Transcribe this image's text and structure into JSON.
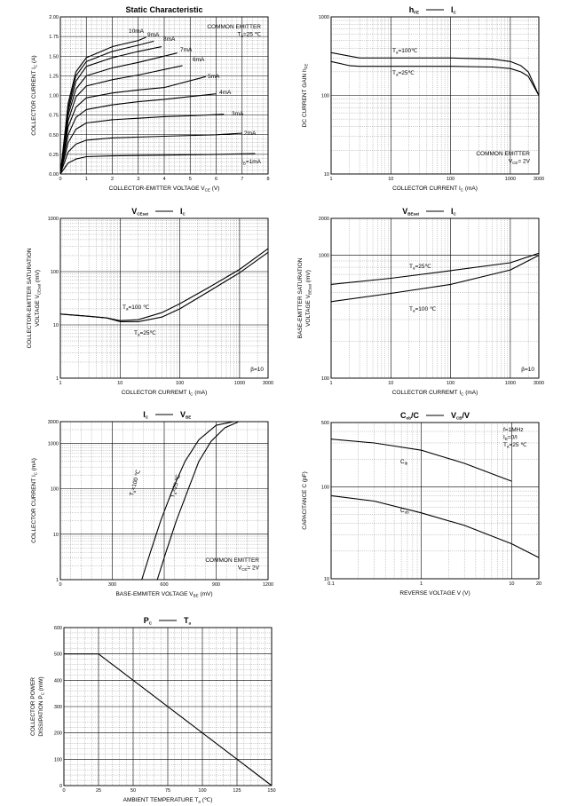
{
  "chart_data": [
    {
      "id": "c1",
      "type": "line",
      "title": "Static Characteristic",
      "xlabel": "COLLECTOR-EMITTER VOLTAGE",
      "xsym": "V",
      "xsub": "CE",
      "xunit": "(V)",
      "ylabel": "COLLECTOR CURRENT",
      "ysym": "I",
      "ysub": "C",
      "yunit": "(A)",
      "xscale": "linear",
      "yscale": "linear",
      "xlim": [
        0,
        8
      ],
      "ylim": [
        0,
        2.0
      ],
      "xticks": [
        0,
        1,
        2,
        3,
        4,
        5,
        6,
        7,
        8
      ],
      "yticks": [
        0,
        0.25,
        0.5,
        0.75,
        1.0,
        1.25,
        1.5,
        1.75,
        2.0
      ],
      "yticklabels": [
        "0.00",
        "0.25",
        "0.50",
        "0.75",
        "1.00",
        "1.25",
        "1.50",
        "1.75",
        "2.00"
      ],
      "notes": [
        "COMMON EMITTER",
        "T_a=25 ℃"
      ],
      "series": [
        {
          "label": "10mA",
          "x": [
            0,
            0.3,
            0.6,
            1,
            2,
            3,
            3.3
          ],
          "y": [
            0,
            0.9,
            1.3,
            1.48,
            1.62,
            1.7,
            1.74
          ]
        },
        {
          "label": "9mA",
          "x": [
            0,
            0.3,
            0.6,
            1,
            2,
            3,
            3.6
          ],
          "y": [
            0,
            0.85,
            1.25,
            1.43,
            1.56,
            1.64,
            1.69
          ]
        },
        {
          "label": "8mA",
          "x": [
            0,
            0.3,
            0.6,
            1,
            2,
            3,
            3.9
          ],
          "y": [
            0,
            0.8,
            1.18,
            1.37,
            1.48,
            1.56,
            1.62
          ]
        },
        {
          "label": "7mA",
          "x": [
            0,
            0.3,
            0.6,
            1,
            2,
            3,
            4.5
          ],
          "y": [
            0,
            0.75,
            1.08,
            1.25,
            1.35,
            1.42,
            1.54
          ]
        },
        {
          "label": "6mA",
          "x": [
            0,
            0.3,
            0.6,
            1,
            2,
            3,
            4.7
          ],
          "y": [
            0,
            0.68,
            0.98,
            1.12,
            1.2,
            1.26,
            1.38
          ]
        },
        {
          "label": "5mA",
          "x": [
            0,
            0.3,
            0.6,
            1,
            2,
            3,
            4,
            5.6
          ],
          "y": [
            0,
            0.6,
            0.85,
            0.97,
            1.03,
            1.07,
            1.1,
            1.24
          ]
        },
        {
          "label": "4mA",
          "x": [
            0,
            0.3,
            0.6,
            1,
            2,
            3,
            4,
            6
          ],
          "y": [
            0,
            0.5,
            0.72,
            0.82,
            0.88,
            0.92,
            0.95,
            1.02
          ]
        },
        {
          "label": "3mA",
          "x": [
            0,
            0.3,
            0.6,
            1,
            2,
            3,
            4,
            5,
            6.3
          ],
          "y": [
            0,
            0.4,
            0.57,
            0.65,
            0.69,
            0.71,
            0.73,
            0.74,
            0.76
          ]
        },
        {
          "label": "2mA",
          "x": [
            0,
            0.3,
            0.6,
            1,
            2,
            4,
            6,
            7
          ],
          "y": [
            0,
            0.28,
            0.38,
            0.43,
            0.46,
            0.48,
            0.5,
            0.52
          ]
        },
        {
          "label": "I_B=1mA",
          "x": [
            0,
            0.3,
            0.6,
            1,
            2,
            4,
            6,
            7.5
          ],
          "y": [
            0,
            0.14,
            0.19,
            0.22,
            0.23,
            0.24,
            0.25,
            0.26
          ]
        }
      ]
    },
    {
      "id": "c2",
      "type": "line",
      "title": "h_FE — I_C",
      "xlabel": "COLLECTOR CURRENT",
      "xsym": "I",
      "xsub": "C",
      "xunit": "(mA)",
      "ylabel": "DC CURRENT GAIN",
      "ysym": "h",
      "ysub": "FE",
      "yunit": "",
      "xscale": "log",
      "yscale": "log",
      "xlim": [
        1,
        3000
      ],
      "ylim": [
        10,
        1000
      ],
      "xticks": [
        1,
        10,
        100,
        1000,
        3000
      ],
      "yticks": [
        10,
        100,
        1000
      ],
      "notes": [
        "COMMON EMITTER",
        "V_CE= 2V"
      ],
      "series": [
        {
          "label": "T_a=100℃",
          "x": [
            1,
            3,
            10,
            100,
            500,
            1000,
            1500,
            2000,
            3000
          ],
          "y": [
            350,
            300,
            300,
            300,
            290,
            270,
            240,
            200,
            100
          ]
        },
        {
          "label": "T_a=25℃",
          "x": [
            1,
            2,
            3,
            10,
            100,
            500,
            1000,
            1500,
            2000,
            3000
          ],
          "y": [
            270,
            240,
            235,
            235,
            235,
            230,
            220,
            200,
            175,
            100
          ]
        }
      ]
    },
    {
      "id": "c3",
      "type": "line",
      "title": "V_CEsat — I_C",
      "xlabel": "COLLECTOR CURREMT",
      "xsym": "I",
      "xsub": "C",
      "xunit": "(mA)",
      "ylabel": "COLLECTOR-EMITTER SATURATION VOLTAGE",
      "ysym": "V",
      "ysub": "CEsat",
      "yunit": "(mV)",
      "xscale": "log",
      "yscale": "log",
      "xlim": [
        1,
        3000
      ],
      "ylim": [
        1,
        1000
      ],
      "xticks": [
        1,
        10,
        100,
        1000,
        3000
      ],
      "yticks": [
        1,
        10,
        100,
        1000
      ],
      "notes": [
        "β=10"
      ],
      "series": [
        {
          "label": "T_a=100 ℃",
          "x": [
            1,
            3,
            6,
            10,
            20,
            50,
            100,
            300,
            1000,
            3000
          ],
          "y": [
            16,
            14.5,
            13.5,
            12,
            12.5,
            17,
            25,
            50,
            110,
            270
          ]
        },
        {
          "label": "T_a=25℃",
          "x": [
            1,
            3,
            6,
            10,
            20,
            50,
            100,
            300,
            1000,
            3000
          ],
          "y": [
            16,
            14.5,
            13.5,
            11.5,
            11.5,
            14,
            20,
            42,
            95,
            230
          ]
        }
      ]
    },
    {
      "id": "c4",
      "type": "line",
      "title": "V_BEsat — I_C",
      "xlabel": "COLLECTOR CURREMT",
      "xsym": "I",
      "xsub": "C",
      "xunit": "(mA)",
      "ylabel": "BASE-EMITTER SATURATION VOLTAGE",
      "ysym": "V",
      "ysub": "BEsat",
      "yunit": "(mV)",
      "xscale": "log",
      "yscale": "log",
      "xlim": [
        1,
        3000
      ],
      "ylim": [
        100,
        2000
      ],
      "xticks": [
        1,
        10,
        100,
        1000,
        3000
      ],
      "yticks": [
        100,
        1000,
        2000
      ],
      "notes": [
        "β=10"
      ],
      "series": [
        {
          "label": "T_a=25℃",
          "x": [
            1,
            10,
            100,
            1000,
            3000
          ],
          "y": [
            580,
            650,
            750,
            870,
            1040
          ]
        },
        {
          "label": "T_a=100 ℃",
          "x": [
            1,
            10,
            100,
            1000,
            3000
          ],
          "y": [
            420,
            490,
            580,
            760,
            1000
          ]
        }
      ]
    },
    {
      "id": "c5",
      "type": "line",
      "title": "I_C — V_BE",
      "xlabel": "BASE-EMMITER VOLTAGE",
      "xsym": "V",
      "xsub": "BE",
      "xunit": "(mV)",
      "ylabel": "COLLECTOR CURRENT",
      "ysym": "I",
      "ysub": "C",
      "yunit": "(mA)",
      "xscale": "linear",
      "yscale": "log",
      "xlim": [
        0,
        1200
      ],
      "ylim": [
        1,
        3000
      ],
      "xticks": [
        0,
        300,
        600,
        900,
        1200
      ],
      "yticks": [
        1,
        10,
        100,
        1000,
        3000
      ],
      "notes": [
        "COMMON EMITTER",
        "V_CE= 2V"
      ],
      "series": [
        {
          "label": "T_a=100 ℃",
          "x": [
            470,
            520,
            580,
            650,
            720,
            800,
            900,
            1000
          ],
          "y": [
            1,
            4,
            20,
            100,
            400,
            1200,
            2500,
            3000
          ]
        },
        {
          "label": "T_a=25 ℃",
          "x": [
            560,
            610,
            670,
            740,
            800,
            870,
            950,
            1030
          ],
          "y": [
            1,
            4,
            20,
            100,
            400,
            1100,
            2200,
            3000
          ]
        }
      ]
    },
    {
      "id": "c6",
      "type": "line",
      "title": "C_ob/C_ib — V_CB/V_EB",
      "xlabel": "REVERSE VOLTAGE",
      "xsym": "V",
      "xsub": "",
      "xunit": "(V)",
      "ylabel": "CAPACITANCE",
      "ysym": "C",
      "ysub": "",
      "yunit": "(pF)",
      "xscale": "log",
      "yscale": "log",
      "xlim": [
        0.1,
        20
      ],
      "ylim": [
        10,
        500
      ],
      "xticks": [
        0.1,
        1,
        10,
        20
      ],
      "yticks": [
        10,
        100,
        500
      ],
      "notes": [
        "f=1MHz",
        "I_E=0/I_C=0",
        "T_a=25 ℃"
      ],
      "series": [
        {
          "label": "C_ib",
          "x": [
            0.1,
            0.3,
            1,
            3,
            10
          ],
          "y": [
            330,
            300,
            250,
            180,
            115
          ]
        },
        {
          "label": "C_ob",
          "x": [
            0.1,
            0.3,
            1,
            3,
            10,
            20
          ],
          "y": [
            80,
            70,
            52,
            38,
            24,
            17
          ]
        }
      ]
    },
    {
      "id": "c7",
      "type": "line",
      "title": "P_C — T_a",
      "xlabel": "AMBIENT TEMPERATURE",
      "xsym": "T",
      "xsub": "a",
      "xunit": "(℃)",
      "ylabel": "COLLECTOR POWER DISSIPATION",
      "ysym": "P",
      "ysub": "C",
      "yunit": "(mW)",
      "xscale": "linear",
      "yscale": "linear",
      "xlim": [
        0,
        150
      ],
      "ylim": [
        0,
        600
      ],
      "xticks": [
        0,
        25,
        50,
        75,
        100,
        125,
        150
      ],
      "yticks": [
        0,
        100,
        200,
        300,
        400,
        500,
        600
      ],
      "notes": [],
      "series": [
        {
          "label": "",
          "x": [
            0,
            25,
            150
          ],
          "y": [
            500,
            500,
            0
          ]
        }
      ]
    }
  ]
}
